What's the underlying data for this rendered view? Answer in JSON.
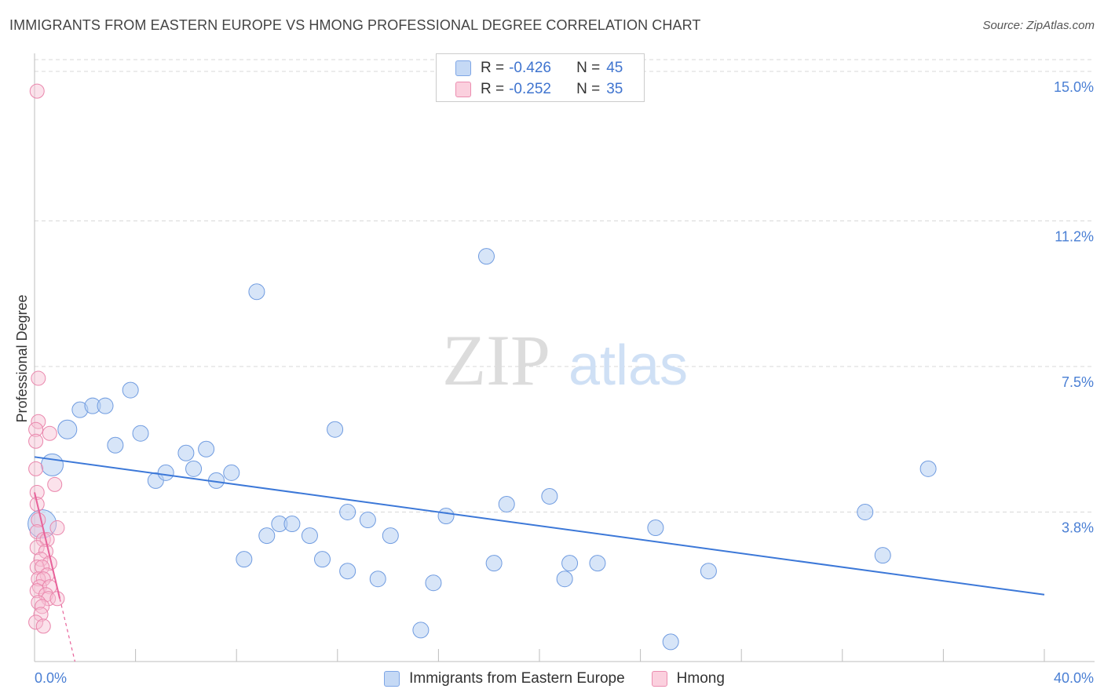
{
  "title": "IMMIGRANTS FROM EASTERN EUROPE VS HMONG PROFESSIONAL DEGREE CORRELATION CHART",
  "source": "Source: ZipAtlas.com",
  "watermark": {
    "zip": "ZIP",
    "atlas": "atlas"
  },
  "colors": {
    "blue": "#3c78d8",
    "blue_fill": "#b7cff2",
    "pink": "#e8629a",
    "pink_fill": "#f7bfd3",
    "grid": "#d8d8d8",
    "tick_text": "#4a7fd4"
  },
  "legend": [
    {
      "r_label": "R =",
      "r_value": "-0.426",
      "n_label": "N =",
      "n_value": "45"
    },
    {
      "r_label": "R =",
      "r_value": "-0.252",
      "n_label": "N =",
      "n_value": "35"
    }
  ],
  "bottom_legend": [
    "Immigrants from Eastern Europe",
    "Hmong"
  ],
  "chart_data": {
    "type": "scatter",
    "title": "IMMIGRANTS FROM EASTERN EUROPE VS HMONG PROFESSIONAL DEGREE CORRELATION CHART",
    "xlabel": "",
    "ylabel": "Professional Degree",
    "xlim": [
      0,
      40
    ],
    "ylim": [
      0,
      15.3
    ],
    "x_tick_labels": [
      "0.0%",
      "40.0%"
    ],
    "y_ticks": [
      3.8,
      7.5,
      11.2,
      15.0
    ],
    "y_tick_labels": [
      "3.8%",
      "7.5%",
      "11.2%",
      "15.0%"
    ],
    "grid": true,
    "series": [
      {
        "name": "Immigrants from Eastern Europe",
        "color": "#3c78d8",
        "points": [
          [
            0.7,
            5.0,
            14
          ],
          [
            1.3,
            5.9,
            12
          ],
          [
            0.3,
            3.5,
            18
          ],
          [
            1.8,
            6.4,
            10
          ],
          [
            2.3,
            6.5,
            10
          ],
          [
            2.8,
            6.5,
            10
          ],
          [
            3.2,
            5.5,
            10
          ],
          [
            3.8,
            6.9,
            10
          ],
          [
            4.2,
            5.8,
            10
          ],
          [
            4.8,
            4.6,
            10
          ],
          [
            5.2,
            4.8,
            10
          ],
          [
            6.0,
            5.3,
            10
          ],
          [
            6.3,
            4.9,
            10
          ],
          [
            6.8,
            5.4,
            10
          ],
          [
            7.2,
            4.6,
            10
          ],
          [
            7.8,
            4.8,
            10
          ],
          [
            8.3,
            2.6,
            10
          ],
          [
            8.8,
            9.4,
            10
          ],
          [
            9.2,
            3.2,
            10
          ],
          [
            9.7,
            3.5,
            10
          ],
          [
            10.2,
            3.5,
            10
          ],
          [
            10.9,
            3.2,
            10
          ],
          [
            11.4,
            2.6,
            10
          ],
          [
            11.9,
            5.9,
            10
          ],
          [
            12.4,
            2.3,
            10
          ],
          [
            12.4,
            3.8,
            10
          ],
          [
            13.2,
            3.6,
            10
          ],
          [
            13.6,
            2.1,
            10
          ],
          [
            14.1,
            3.2,
            10
          ],
          [
            15.3,
            0.8,
            10
          ],
          [
            15.8,
            2.0,
            10
          ],
          [
            16.3,
            3.7,
            10
          ],
          [
            17.9,
            10.3,
            10
          ],
          [
            18.2,
            2.5,
            10
          ],
          [
            18.7,
            4.0,
            10
          ],
          [
            20.4,
            4.2,
            10
          ],
          [
            21.0,
            2.1,
            10
          ],
          [
            21.2,
            2.5,
            10
          ],
          [
            22.3,
            2.5,
            10
          ],
          [
            24.6,
            3.4,
            10
          ],
          [
            25.2,
            0.5,
            10
          ],
          [
            26.7,
            2.3,
            10
          ],
          [
            32.9,
            3.8,
            10
          ],
          [
            33.6,
            2.7,
            10
          ],
          [
            35.4,
            4.9,
            10
          ]
        ],
        "trend": {
          "x0": 0.0,
          "y0": 5.2,
          "x1": 40.0,
          "y1": 1.7
        }
      },
      {
        "name": "Hmong",
        "color": "#e8629a",
        "points": [
          [
            0.1,
            14.5,
            9
          ],
          [
            0.15,
            7.2,
            9
          ],
          [
            0.15,
            6.1,
            9
          ],
          [
            0.05,
            5.9,
            9
          ],
          [
            0.6,
            5.8,
            9
          ],
          [
            0.05,
            5.6,
            9
          ],
          [
            0.05,
            4.9,
            9
          ],
          [
            0.8,
            4.5,
            9
          ],
          [
            0.1,
            4.3,
            9
          ],
          [
            0.1,
            4.0,
            9
          ],
          [
            0.15,
            3.6,
            9
          ],
          [
            0.9,
            3.4,
            9
          ],
          [
            0.1,
            3.3,
            9
          ],
          [
            0.35,
            3.1,
            9
          ],
          [
            0.5,
            3.1,
            9
          ],
          [
            0.1,
            2.9,
            9
          ],
          [
            0.45,
            2.8,
            9
          ],
          [
            0.25,
            2.6,
            9
          ],
          [
            0.6,
            2.5,
            9
          ],
          [
            0.1,
            2.4,
            9
          ],
          [
            0.3,
            2.4,
            9
          ],
          [
            0.5,
            2.2,
            9
          ],
          [
            0.15,
            2.1,
            9
          ],
          [
            0.35,
            2.1,
            9
          ],
          [
            0.2,
            1.9,
            9
          ],
          [
            0.6,
            1.9,
            9
          ],
          [
            0.1,
            1.8,
            9
          ],
          [
            0.45,
            1.7,
            9
          ],
          [
            0.55,
            1.6,
            9
          ],
          [
            0.9,
            1.6,
            9
          ],
          [
            0.15,
            1.5,
            9
          ],
          [
            0.3,
            1.4,
            9
          ],
          [
            0.25,
            1.2,
            9
          ],
          [
            0.05,
            1.0,
            9
          ],
          [
            0.35,
            0.9,
            9
          ]
        ],
        "trend": {
          "x0": 0.0,
          "y0": 4.3,
          "x1": 1.0,
          "y1": 1.6
        },
        "trend_extension": {
          "x0": 1.0,
          "y0": 1.6,
          "x1": 1.6,
          "y1": 0.0
        }
      }
    ]
  }
}
